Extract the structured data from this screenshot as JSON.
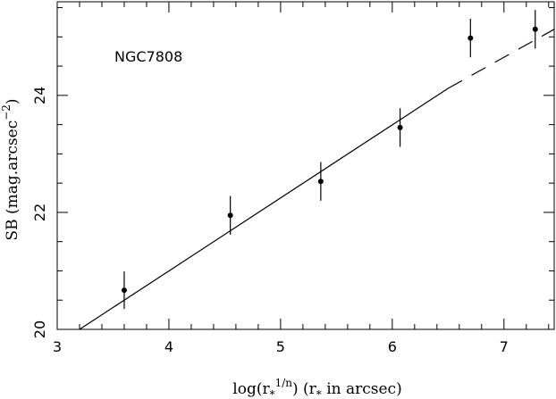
{
  "chart_data": {
    "type": "scatter",
    "annotation": "NGC7808",
    "xlabel_main": "log(r",
    "xlabel_star": "*",
    "xlabel_exp": "1/n",
    "xlabel_mid": ")  (r",
    "xlabel_tail": " in arcsec)",
    "ylabel_main": "SB (mag.arcsec",
    "ylabel_exp": "−2",
    "ylabel_close": ")",
    "xlim": [
      3,
      7.45
    ],
    "ylim": [
      20,
      25.6
    ],
    "x_ticks": [
      3,
      4,
      5,
      6,
      7
    ],
    "y_ticks": [
      20,
      22,
      24
    ],
    "grid": false,
    "points": [
      {
        "x": 3.6,
        "y": 20.67,
        "err": 0.32
      },
      {
        "x": 4.55,
        "y": 21.95,
        "err": 0.33
      },
      {
        "x": 5.36,
        "y": 22.53,
        "err": 0.33
      },
      {
        "x": 6.07,
        "y": 23.45,
        "err": 0.33
      },
      {
        "x": 6.7,
        "y": 24.98,
        "err": 0.33
      },
      {
        "x": 7.28,
        "y": 25.13,
        "err": 0.33
      }
    ],
    "fit_solid": {
      "x": [
        3.2,
        6.5
      ],
      "y": [
        20.0,
        24.12
      ]
    },
    "fit_dashed": {
      "x": [
        6.5,
        7.45
      ],
      "y": [
        24.12,
        25.13
      ]
    }
  }
}
